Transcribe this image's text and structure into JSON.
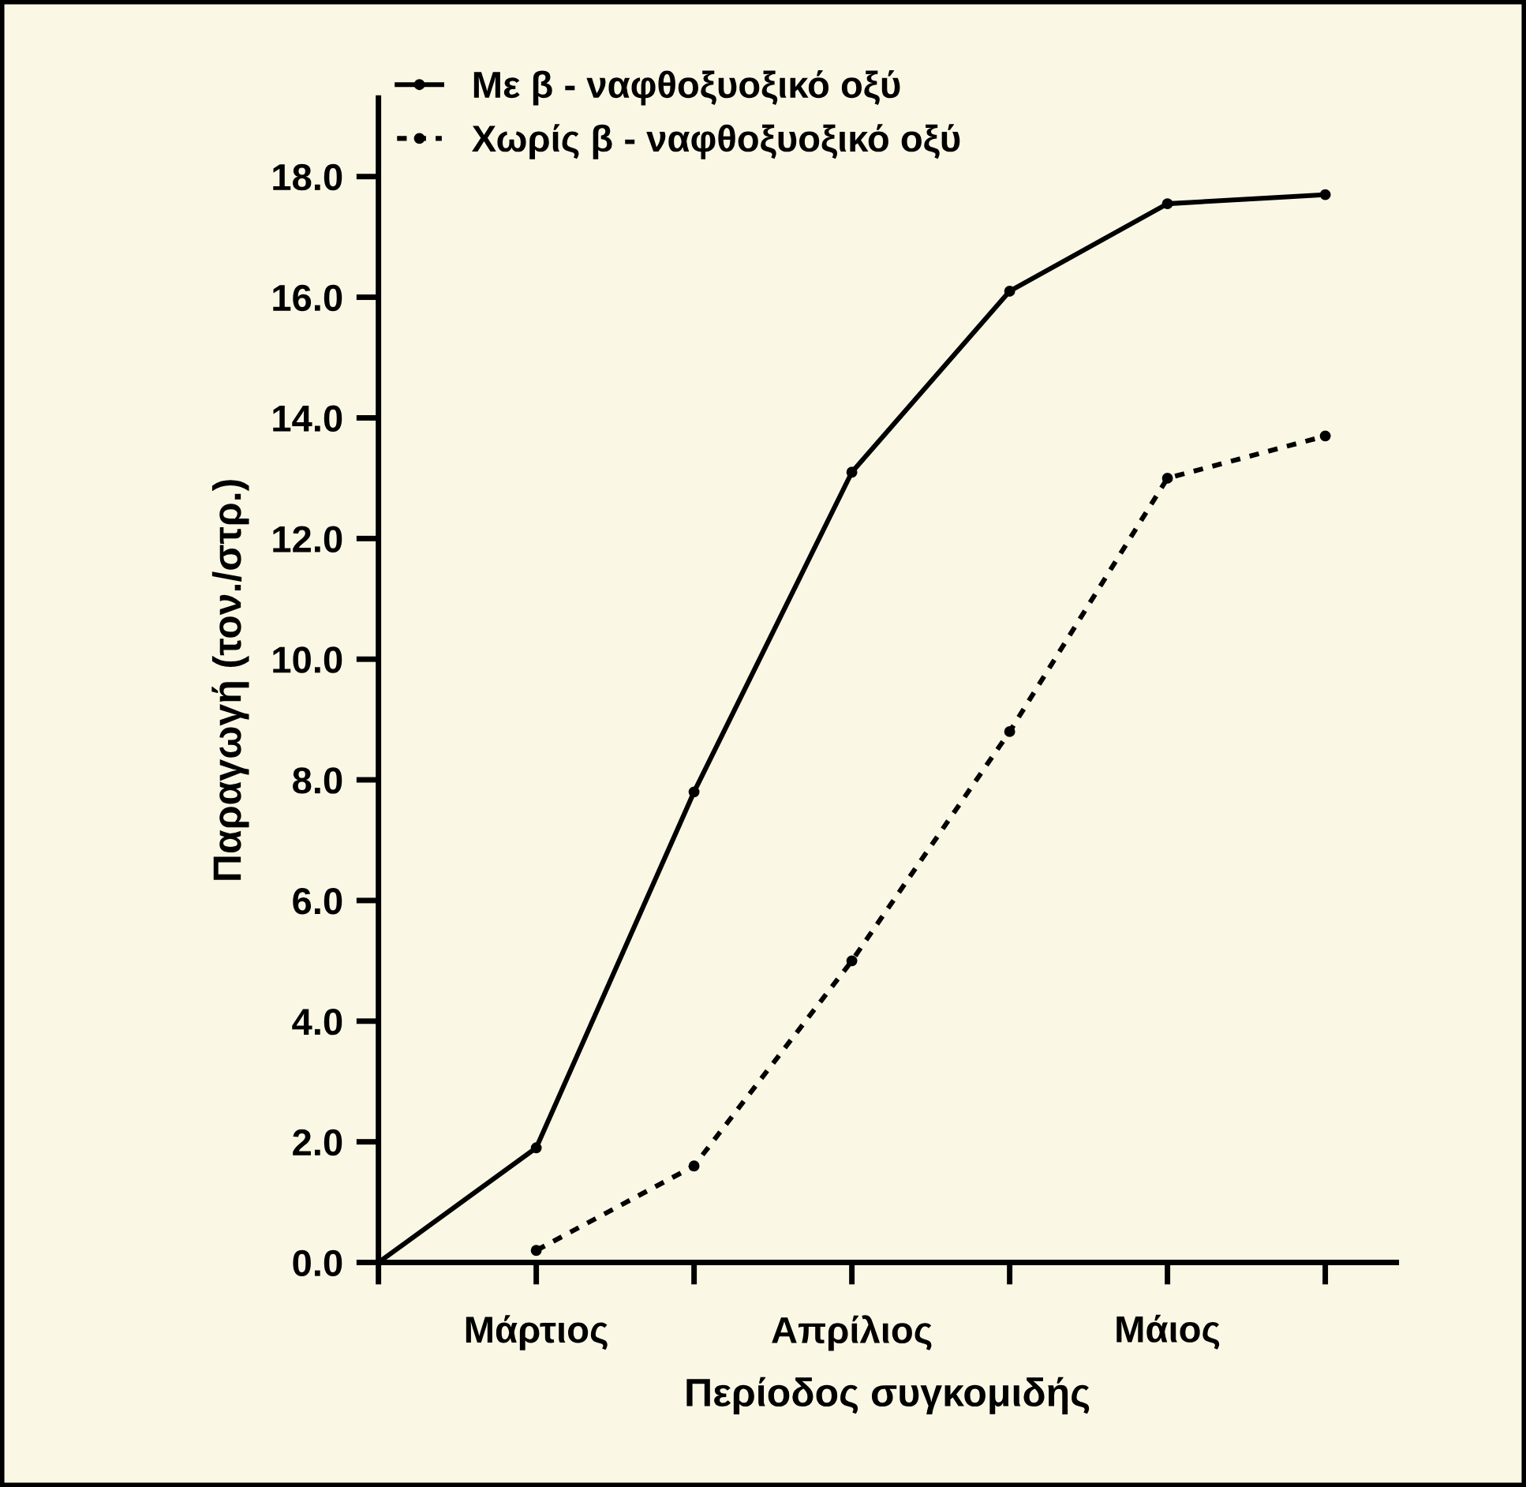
{
  "chart_data": {
    "type": "line",
    "xlabel": "Περίοδος συγκομιδής",
    "ylabel": "Παραγωγή (τον./στρ.)",
    "series": [
      {
        "name": "Με β - ναφθοξυοξικό οξύ",
        "color": "#000000",
        "line_style": "solid",
        "values": [
          0,
          1.9,
          7.8,
          13.1,
          16.1,
          17.55,
          17.7
        ]
      },
      {
        "name": "Χωρίς β - ναφθοξυοξικό οξύ",
        "color": "#000000",
        "line_style": "dashed",
        "values": [
          null,
          0.2,
          1.6,
          5.0,
          8.8,
          13.0,
          13.7
        ]
      }
    ],
    "marker": "circle",
    "categories": [
      null,
      "Μάρτιος",
      null,
      "Απρίλιος",
      null,
      "Μάιος",
      null
    ],
    "ylim": [
      0,
      19.3
    ],
    "yticks": [
      {
        "value": 0,
        "label": "0.0"
      },
      {
        "value": 2,
        "label": "2.0"
      },
      {
        "value": 4,
        "label": "4.0"
      },
      {
        "value": 6,
        "label": "6.0"
      },
      {
        "value": 8,
        "label": "8.0"
      },
      {
        "value": 10,
        "label": "10.0"
      },
      {
        "value": 12,
        "label": "12.0"
      },
      {
        "value": 14,
        "label": "14.0"
      },
      {
        "value": 16,
        "label": "16.0"
      },
      {
        "value": 18,
        "label": "18.0"
      }
    ],
    "grid": false,
    "legend": "top left"
  }
}
